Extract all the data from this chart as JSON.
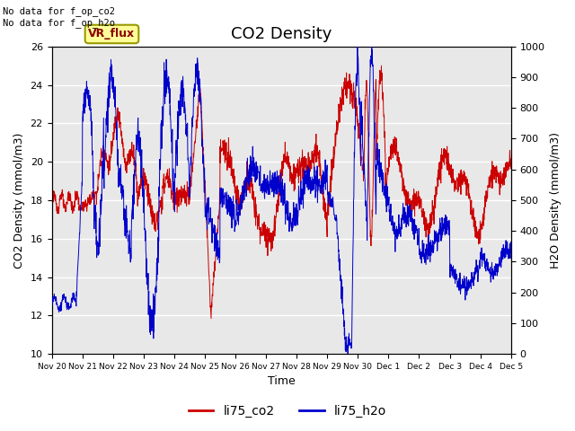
{
  "title": "CO2 Density",
  "xlabel": "Time",
  "ylabel_left": "CO2 Density (mmol/m3)",
  "ylabel_right": "H2O Density (mmol/m3)",
  "ylim_left": [
    10,
    26
  ],
  "ylim_right": [
    0,
    1000
  ],
  "yticks_left": [
    10,
    12,
    14,
    16,
    18,
    20,
    22,
    24,
    26
  ],
  "yticks_right": [
    0,
    100,
    200,
    300,
    400,
    500,
    600,
    700,
    800,
    900,
    1000
  ],
  "annotation_top": "No data for f_op_co2\nNo data for f_op_h2o",
  "annotation_box": "VR_flux",
  "legend_labels": [
    "li75_co2",
    "li75_h2o"
  ],
  "line_colors": [
    "#cc0000",
    "#0000cc"
  ],
  "bg_color": "#e8e8e8",
  "fig_bg": "#ffffff",
  "grid_color": "#ffffff",
  "title_fontsize": 13,
  "axis_fontsize": 9,
  "tick_fontsize": 8,
  "legend_fontsize": 10,
  "xtick_labels": [
    "Nov 20",
    "Nov 21",
    "Nov 22",
    "Nov 23",
    "Nov 24",
    "Nov 25",
    "Nov 26",
    "Nov 27",
    "Nov 28",
    "Nov 29",
    "Nov 30",
    "Dec 1",
    "Dec 2",
    "Dec 3",
    "Dec 4",
    "Dec 5"
  ],
  "num_points": 2000
}
